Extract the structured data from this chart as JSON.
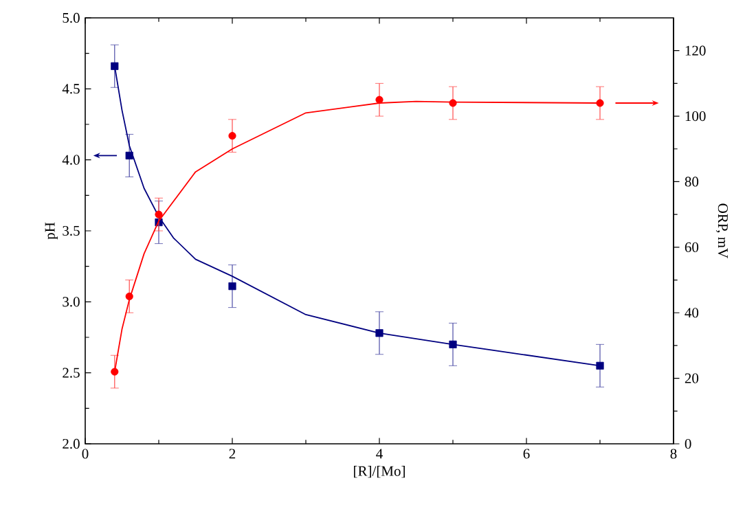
{
  "chart_data": {
    "type": "scatter",
    "xlabel": "[R]/[Mo]",
    "ylabel": "pH",
    "y2label": "ORP, mV",
    "xlim": [
      0,
      8
    ],
    "xticks": [
      0,
      2,
      4,
      6,
      8
    ],
    "ylim": [
      2,
      5
    ],
    "yticks": [
      {
        "value": 2,
        "label": "2.0"
      },
      {
        "value": 2.5,
        "label": "2.5"
      },
      {
        "value": 3,
        "label": "3.0"
      },
      {
        "value": 3.5,
        "label": "3.5"
      },
      {
        "value": 4,
        "label": "4.0"
      },
      {
        "value": 4.5,
        "label": "4.5"
      },
      {
        "value": 5,
        "label": "5.0"
      }
    ],
    "y2lim": [
      0,
      130
    ],
    "y2ticks": [
      0,
      20,
      40,
      60,
      80,
      100,
      120
    ],
    "series": [
      {
        "color": "#000080",
        "marker": "square",
        "x": [
          0.4,
          0.6,
          1,
          2,
          4,
          5,
          7
        ],
        "values": [
          4.66,
          4.03,
          3.56,
          3.11,
          2.78,
          2.7,
          2.55
        ],
        "errors": [
          0.15,
          0.15,
          0.15,
          0.15,
          0.15,
          0.15,
          0.15
        ]
      },
      {
        "type": "line",
        "color": "#000080",
        "x": [
          0.4,
          0.5,
          0.6,
          0.8,
          1,
          1.2,
          1.5,
          2,
          3,
          4,
          5,
          7
        ],
        "values": [
          4.66,
          4.35,
          4.1,
          3.8,
          3.6,
          3.45,
          3.3,
          3.18,
          2.91,
          2.78,
          2.7,
          2.55
        ]
      },
      {
        "axis": "y2",
        "color": "#ff0000",
        "marker": "circle",
        "x": [
          0.4,
          0.6,
          1,
          2,
          4,
          5,
          7
        ],
        "values": [
          22,
          45,
          70,
          94,
          105,
          104,
          104
        ],
        "errors": [
          5,
          5,
          5,
          5,
          5,
          5,
          5
        ]
      },
      {
        "type": "line",
        "axis": "y2",
        "color": "#ff0000",
        "x": [
          0.4,
          0.5,
          0.6,
          0.8,
          1,
          1.5,
          2,
          3,
          4,
          4.5,
          5,
          7
        ],
        "values": [
          22,
          35,
          44,
          58,
          68,
          83,
          90,
          101,
          104,
          104.5,
          104.3,
          104
        ]
      }
    ]
  }
}
